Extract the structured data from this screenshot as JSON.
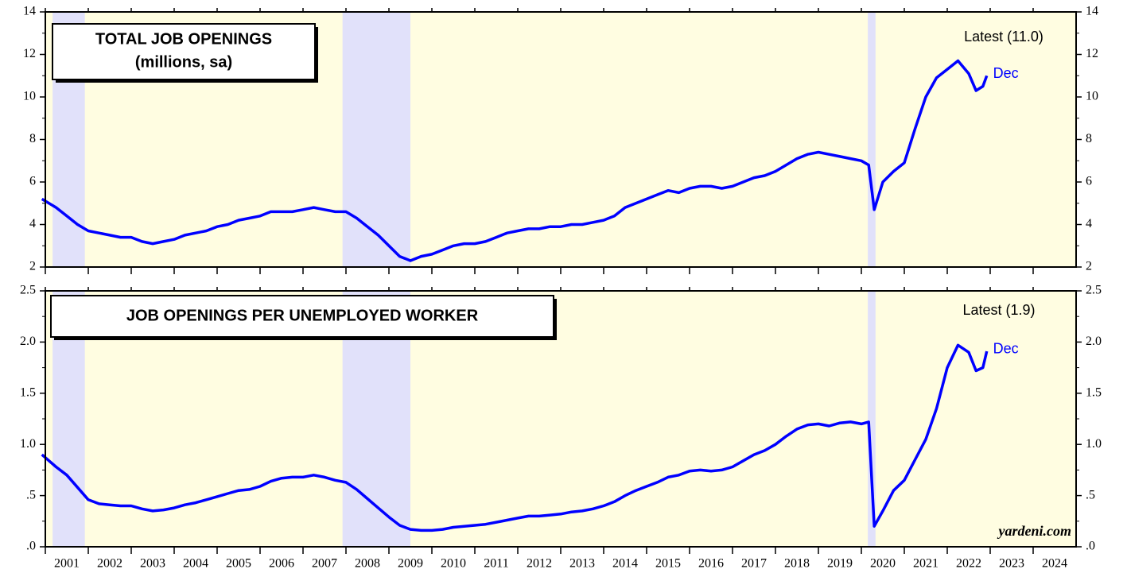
{
  "chart_data": [
    {
      "type": "line",
      "title": "TOTAL JOB OPENINGS",
      "subtitle": "(millions, sa)",
      "annotation": "Latest (11.0)",
      "last_label": "Dec",
      "color": "#0000ff",
      "background": "#fffde1",
      "shade_color": "#e1e1fa",
      "recessions": [
        [
          2001.17,
          2001.92
        ],
        [
          2007.92,
          2009.5
        ],
        [
          2020.15,
          2020.33
        ]
      ],
      "xlim": [
        2001,
        2025
      ],
      "xticks": [
        2001,
        2002,
        2003,
        2004,
        2005,
        2006,
        2007,
        2008,
        2009,
        2010,
        2011,
        2012,
        2013,
        2014,
        2015,
        2016,
        2017,
        2018,
        2019,
        2020,
        2021,
        2022,
        2023,
        2024
      ],
      "ylim": [
        2,
        14
      ],
      "yticks": [
        2,
        4,
        6,
        8,
        10,
        12,
        14
      ],
      "x": [
        2000.92,
        2001.25,
        2001.5,
        2001.75,
        2002,
        2002.25,
        2002.5,
        2002.75,
        2003,
        2003.25,
        2003.5,
        2003.75,
        2004,
        2004.25,
        2004.5,
        2004.75,
        2005,
        2005.25,
        2005.5,
        2005.75,
        2006,
        2006.25,
        2006.5,
        2006.75,
        2007,
        2007.25,
        2007.5,
        2007.75,
        2008,
        2008.25,
        2008.5,
        2008.75,
        2009,
        2009.25,
        2009.5,
        2009.75,
        2010,
        2010.25,
        2010.5,
        2010.75,
        2011,
        2011.25,
        2011.5,
        2011.75,
        2012,
        2012.25,
        2012.5,
        2012.75,
        2013,
        2013.25,
        2013.5,
        2013.75,
        2014,
        2014.25,
        2014.5,
        2014.75,
        2015,
        2015.25,
        2015.5,
        2015.75,
        2016,
        2016.25,
        2016.5,
        2016.75,
        2017,
        2017.25,
        2017.5,
        2017.75,
        2018,
        2018.25,
        2018.5,
        2018.75,
        2019,
        2019.25,
        2019.5,
        2019.75,
        2020,
        2020.17,
        2020.3,
        2020.5,
        2020.75,
        2021,
        2021.25,
        2021.5,
        2021.75,
        2022,
        2022.25,
        2022.5,
        2022.67,
        2022.83,
        2022.92
      ],
      "values": [
        5.2,
        4.8,
        4.4,
        4.0,
        3.7,
        3.6,
        3.5,
        3.4,
        3.4,
        3.2,
        3.1,
        3.2,
        3.3,
        3.5,
        3.6,
        3.7,
        3.9,
        4.0,
        4.2,
        4.3,
        4.4,
        4.6,
        4.6,
        4.6,
        4.7,
        4.8,
        4.7,
        4.6,
        4.6,
        4.3,
        3.9,
        3.5,
        3.0,
        2.5,
        2.3,
        2.5,
        2.6,
        2.8,
        3.0,
        3.1,
        3.1,
        3.2,
        3.4,
        3.6,
        3.7,
        3.8,
        3.8,
        3.9,
        3.9,
        4.0,
        4.0,
        4.1,
        4.2,
        4.4,
        4.8,
        5.0,
        5.2,
        5.4,
        5.6,
        5.5,
        5.7,
        5.8,
        5.8,
        5.7,
        5.8,
        6.0,
        6.2,
        6.3,
        6.5,
        6.8,
        7.1,
        7.3,
        7.4,
        7.3,
        7.2,
        7.1,
        7.0,
        6.8,
        4.7,
        6.0,
        6.5,
        6.9,
        8.5,
        10.0,
        10.9,
        11.3,
        11.7,
        11.1,
        10.3,
        10.5,
        11.0
      ]
    },
    {
      "type": "line",
      "title": "JOB OPENINGS PER UNEMPLOYED WORKER",
      "annotation": "Latest (1.9)",
      "last_label": "Dec",
      "source": "yardeni.com",
      "color": "#0000ff",
      "background": "#fffde1",
      "shade_color": "#e1e1fa",
      "recessions": [
        [
          2001.17,
          2001.92
        ],
        [
          2007.92,
          2009.5
        ],
        [
          2020.15,
          2020.33
        ]
      ],
      "xlim": [
        2001,
        2025
      ],
      "xticks": [
        2001,
        2002,
        2003,
        2004,
        2005,
        2006,
        2007,
        2008,
        2009,
        2010,
        2011,
        2012,
        2013,
        2014,
        2015,
        2016,
        2017,
        2018,
        2019,
        2020,
        2021,
        2022,
        2023,
        2024
      ],
      "ylim": [
        0,
        2.5
      ],
      "yticks": [
        {
          "value": 0,
          "label": ".0"
        },
        {
          "value": 0.5,
          "label": ".5"
        },
        {
          "value": 1,
          "label": "1.0"
        },
        {
          "value": 1.5,
          "label": "1.5"
        },
        {
          "value": 2,
          "label": "2.0"
        },
        {
          "value": 2.5,
          "label": "2.5"
        }
      ],
      "x": [
        2000.92,
        2001.25,
        2001.5,
        2001.75,
        2002,
        2002.25,
        2002.5,
        2002.75,
        2003,
        2003.25,
        2003.5,
        2003.75,
        2004,
        2004.25,
        2004.5,
        2004.75,
        2005,
        2005.25,
        2005.5,
        2005.75,
        2006,
        2006.25,
        2006.5,
        2006.75,
        2007,
        2007.25,
        2007.5,
        2007.75,
        2008,
        2008.25,
        2008.5,
        2008.75,
        2009,
        2009.25,
        2009.5,
        2009.75,
        2010,
        2010.25,
        2010.5,
        2010.75,
        2011,
        2011.25,
        2011.5,
        2011.75,
        2012,
        2012.25,
        2012.5,
        2012.75,
        2013,
        2013.25,
        2013.5,
        2013.75,
        2014,
        2014.25,
        2014.5,
        2014.75,
        2015,
        2015.25,
        2015.5,
        2015.75,
        2016,
        2016.25,
        2016.5,
        2016.75,
        2017,
        2017.25,
        2017.5,
        2017.75,
        2018,
        2018.25,
        2018.5,
        2018.75,
        2019,
        2019.25,
        2019.5,
        2019.75,
        2020,
        2020.17,
        2020.3,
        2020.5,
        2020.75,
        2021,
        2021.25,
        2021.5,
        2021.75,
        2022,
        2022.25,
        2022.5,
        2022.67,
        2022.83,
        2022.92
      ],
      "values": [
        0.9,
        0.78,
        0.7,
        0.58,
        0.46,
        0.42,
        0.41,
        0.4,
        0.4,
        0.37,
        0.35,
        0.36,
        0.38,
        0.41,
        0.43,
        0.46,
        0.49,
        0.52,
        0.55,
        0.56,
        0.59,
        0.64,
        0.67,
        0.68,
        0.68,
        0.7,
        0.68,
        0.65,
        0.63,
        0.56,
        0.47,
        0.38,
        0.29,
        0.21,
        0.17,
        0.16,
        0.16,
        0.17,
        0.19,
        0.2,
        0.21,
        0.22,
        0.24,
        0.26,
        0.28,
        0.3,
        0.3,
        0.31,
        0.32,
        0.34,
        0.35,
        0.37,
        0.4,
        0.44,
        0.5,
        0.55,
        0.59,
        0.63,
        0.68,
        0.7,
        0.74,
        0.75,
        0.74,
        0.75,
        0.78,
        0.84,
        0.9,
        0.94,
        1.0,
        1.08,
        1.15,
        1.19,
        1.2,
        1.18,
        1.21,
        1.22,
        1.2,
        1.22,
        0.2,
        0.35,
        0.55,
        0.65,
        0.85,
        1.05,
        1.35,
        1.75,
        1.97,
        1.9,
        1.72,
        1.75,
        1.91
      ]
    }
  ]
}
